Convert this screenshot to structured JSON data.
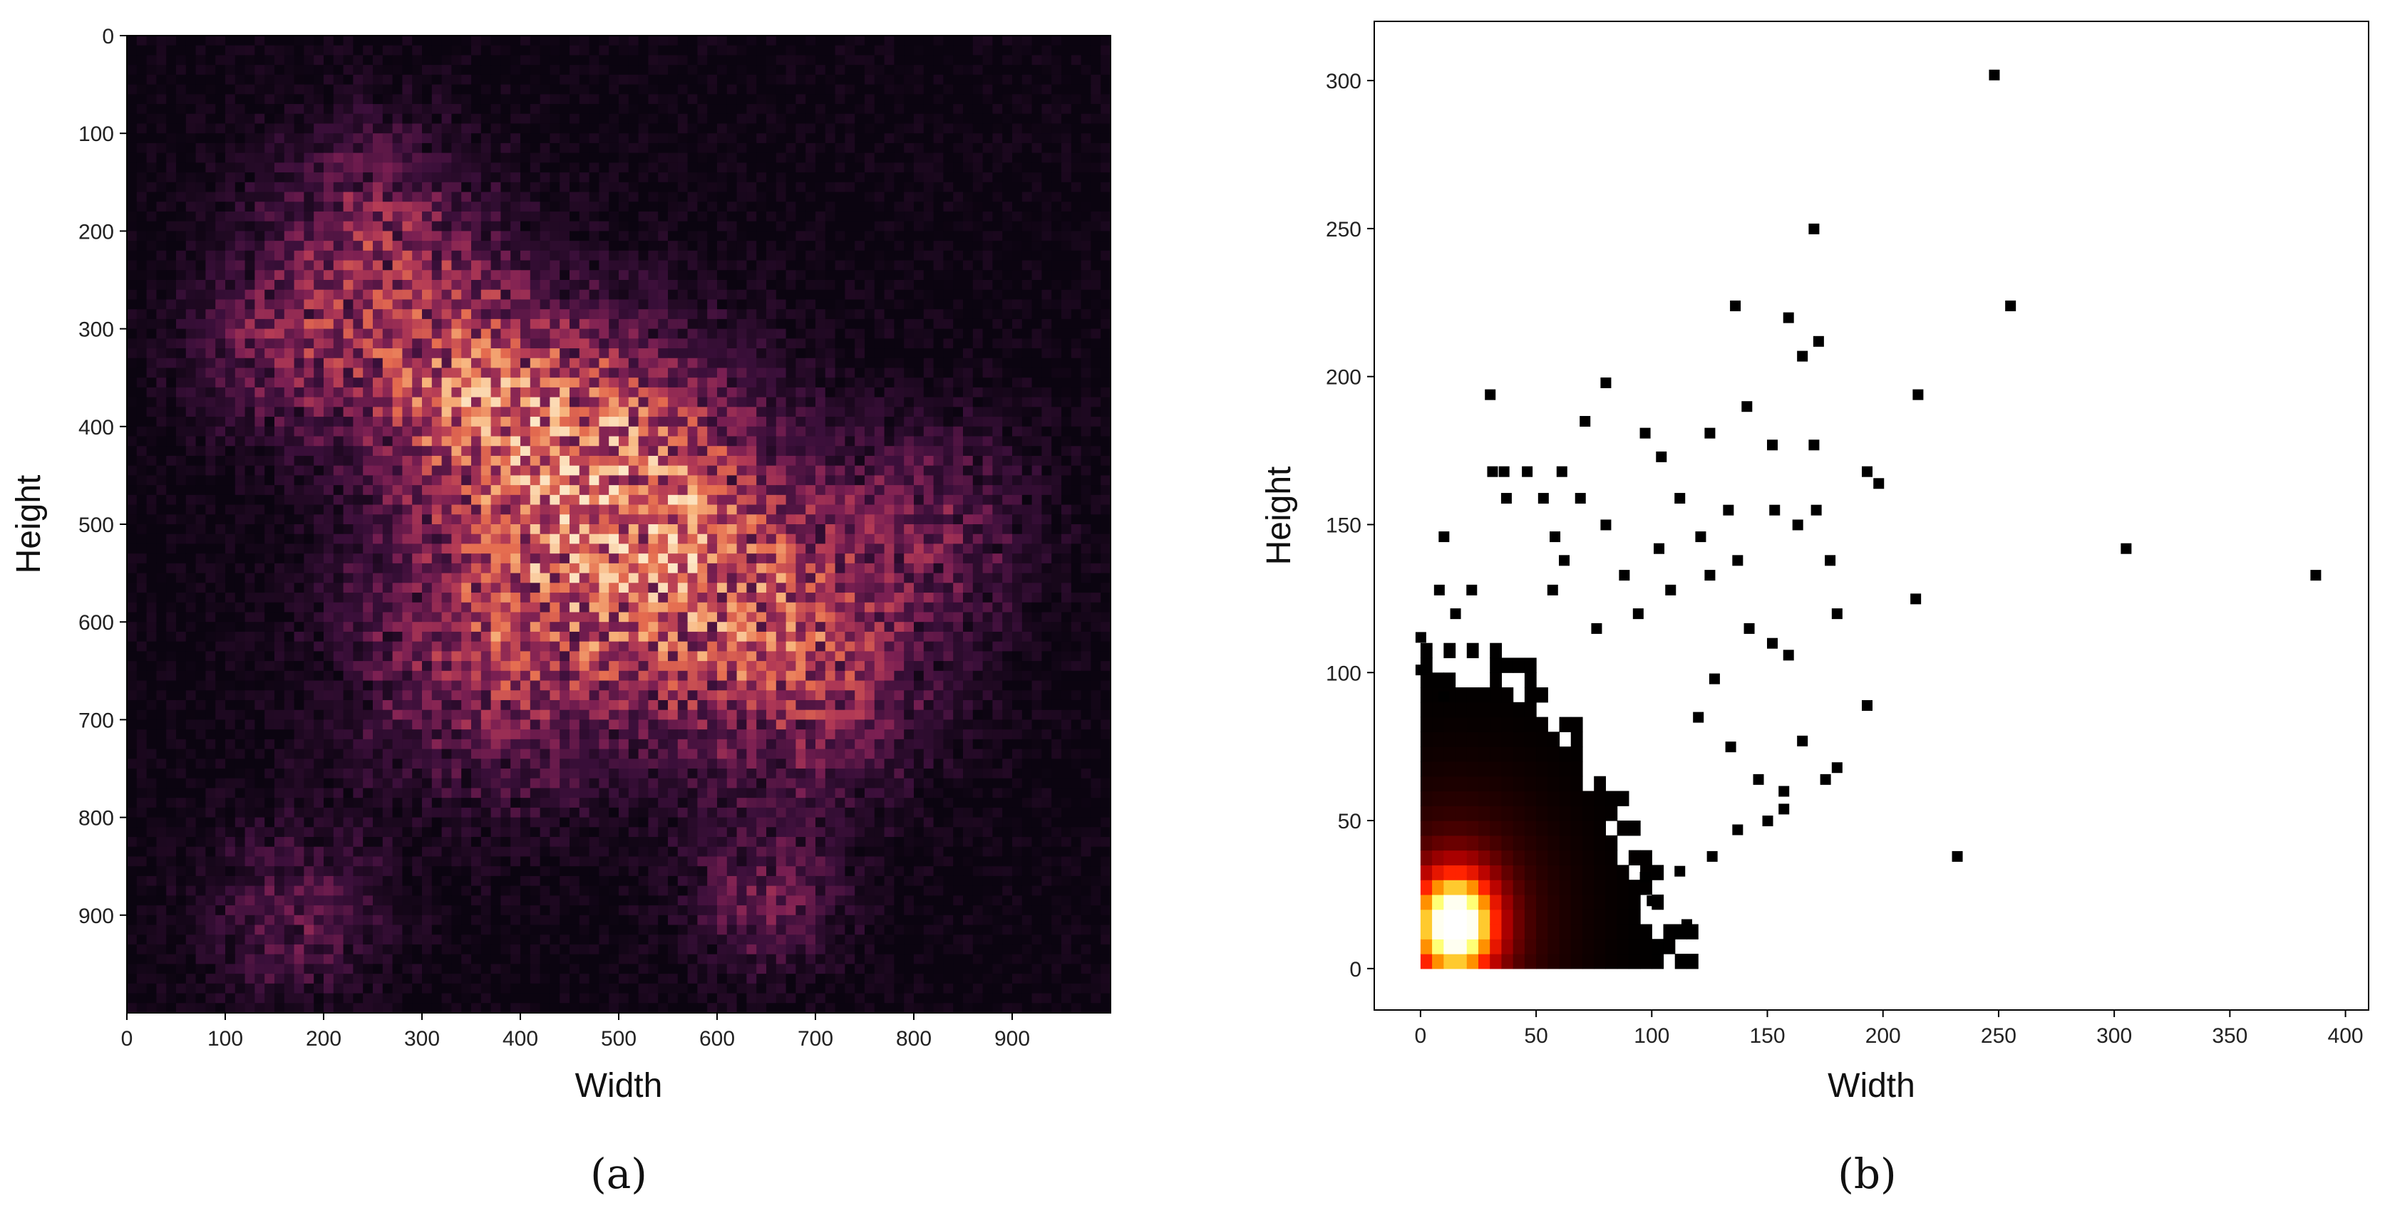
{
  "chart_data": [
    {
      "type": "heatmap",
      "panel_label": "(a)",
      "xlabel": "Width",
      "ylabel": "Height",
      "xlim": [
        0,
        1000
      ],
      "ylim": [
        1000,
        0
      ],
      "y_axis_inverted": true,
      "xticks": [
        "0",
        "100",
        "200",
        "300",
        "400",
        "500",
        "600",
        "700",
        "800",
        "900"
      ],
      "yticks": [
        "0",
        "100",
        "200",
        "300",
        "400",
        "500",
        "600",
        "700",
        "800",
        "900"
      ],
      "colormap": [
        "#0b0410",
        "#3b0f3a",
        "#7a1f52",
        "#b33a55",
        "#e46b4f",
        "#f7b27a",
        "#fde7c6"
      ],
      "intensity_centers": [
        {
          "x": 480,
          "y": 430,
          "spread": 140,
          "level": 1.0
        },
        {
          "x": 330,
          "y": 350,
          "spread": 110,
          "level": 0.85
        },
        {
          "x": 380,
          "y": 620,
          "spread": 150,
          "level": 0.8
        },
        {
          "x": 600,
          "y": 560,
          "spread": 140,
          "level": 0.8
        },
        {
          "x": 250,
          "y": 200,
          "spread": 110,
          "level": 0.6
        },
        {
          "x": 700,
          "y": 660,
          "spread": 120,
          "level": 0.6
        },
        {
          "x": 150,
          "y": 320,
          "spread": 90,
          "level": 0.5
        },
        {
          "x": 650,
          "y": 880,
          "spread": 80,
          "level": 0.5
        },
        {
          "x": 170,
          "y": 900,
          "spread": 90,
          "level": 0.45
        },
        {
          "x": 820,
          "y": 500,
          "spread": 110,
          "level": 0.45
        }
      ]
    },
    {
      "type": "heatmap",
      "subtype": "2d-histogram",
      "panel_label": "(b)",
      "xlabel": "Width",
      "ylabel": "Height",
      "xlim": [
        -20,
        410
      ],
      "ylim": [
        -14,
        320
      ],
      "xticks": [
        0,
        50,
        100,
        150,
        200,
        250,
        300,
        350,
        400
      ],
      "yticks": [
        0,
        50,
        100,
        150,
        200,
        250,
        300
      ],
      "bin_size": 5,
      "colormap": [
        "#000000",
        "#5a0000",
        "#b20000",
        "#ff2000",
        "#ff9a00",
        "#ffff60",
        "#ffffff"
      ],
      "dense_region": {
        "peak_x": 15,
        "peak_y": 15
      },
      "outlier_points": [
        [
          248,
          302
        ],
        [
          170,
          250
        ],
        [
          136,
          224
        ],
        [
          159,
          220
        ],
        [
          172,
          212
        ],
        [
          165,
          207
        ],
        [
          255,
          224
        ],
        [
          215,
          194
        ],
        [
          30,
          194
        ],
        [
          80,
          198
        ],
        [
          71,
          185
        ],
        [
          97,
          181
        ],
        [
          125,
          181
        ],
        [
          141,
          190
        ],
        [
          104,
          173
        ],
        [
          152,
          177
        ],
        [
          170,
          177
        ],
        [
          46,
          168
        ],
        [
          31,
          168
        ],
        [
          36,
          168
        ],
        [
          61,
          168
        ],
        [
          193,
          168
        ],
        [
          198,
          164
        ],
        [
          37,
          159
        ],
        [
          53,
          159
        ],
        [
          69,
          159
        ],
        [
          112,
          159
        ],
        [
          133,
          155
        ],
        [
          153,
          155
        ],
        [
          171,
          155
        ],
        [
          163,
          150
        ],
        [
          10,
          146
        ],
        [
          80,
          150
        ],
        [
          58,
          146
        ],
        [
          121,
          146
        ],
        [
          305,
          142
        ],
        [
          387,
          133
        ],
        [
          177,
          138
        ],
        [
          214,
          125
        ],
        [
          180,
          120
        ],
        [
          193,
          89
        ],
        [
          165,
          77
        ],
        [
          180,
          68
        ],
        [
          175,
          64
        ],
        [
          157,
          60
        ],
        [
          157,
          54
        ],
        [
          232,
          38
        ],
        [
          100,
          23
        ],
        [
          115,
          15
        ],
        [
          8,
          128
        ],
        [
          22,
          128
        ],
        [
          15,
          120
        ],
        [
          88,
          133
        ],
        [
          125,
          133
        ],
        [
          103,
          142
        ],
        [
          137,
          138
        ],
        [
          62,
          138
        ],
        [
          57,
          128
        ],
        [
          76,
          115
        ],
        [
          94,
          120
        ],
        [
          108,
          128
        ],
        [
          142,
          115
        ],
        [
          152,
          110
        ],
        [
          159,
          106
        ],
        [
          127,
          98
        ],
        [
          120,
          85
        ],
        [
          134,
          75
        ],
        [
          146,
          64
        ],
        [
          150,
          50
        ],
        [
          137,
          47
        ],
        [
          126,
          38
        ],
        [
          112,
          33
        ],
        [
          97,
          31
        ],
        [
          0,
          101
        ],
        [
          0,
          112
        ],
        [
          10,
          92
        ]
      ]
    }
  ]
}
